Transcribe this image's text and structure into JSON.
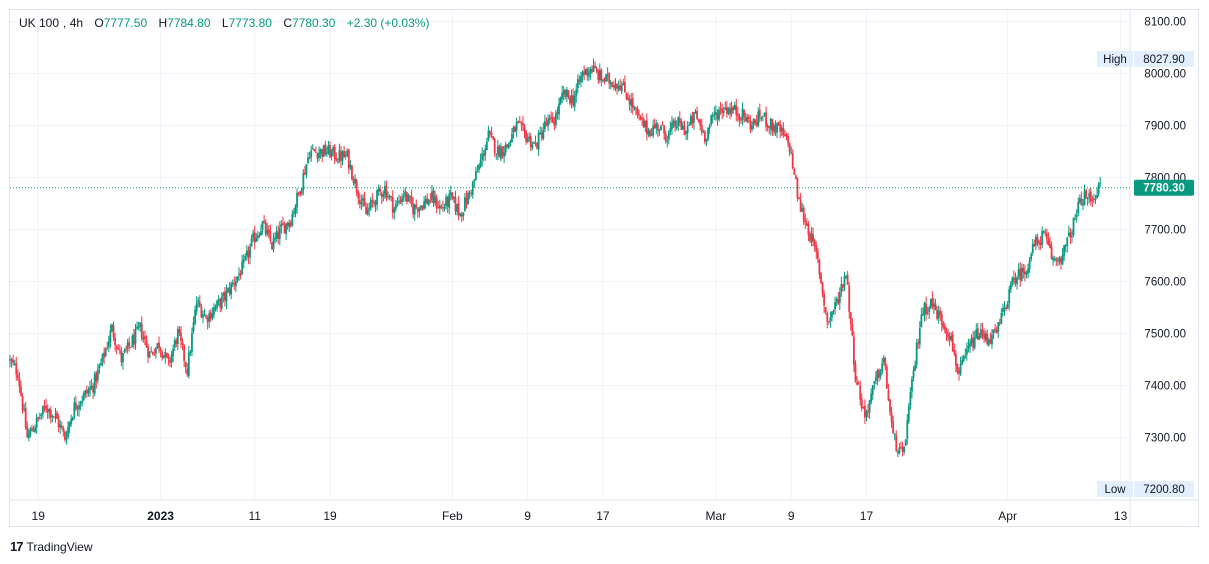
{
  "header": {
    "symbol": "UK 100",
    "interval": "4h",
    "o_label": "O",
    "o_value": "7777.50",
    "h_label": "H",
    "h_value": "7784.80",
    "l_label": "L",
    "l_value": "7773.80",
    "c_label": "C",
    "c_value": "7780.30",
    "change": "+2.30 (+0.03%)"
  },
  "colors": {
    "up": "#089981",
    "down": "#f23645",
    "grid": "#f0f3fa",
    "axis_text": "#131722",
    "badge_bg": "#e3effd"
  },
  "markers": {
    "high_label": "High",
    "high_value": "8027.90",
    "low_label": "Low",
    "low_value": "7200.80",
    "last_value": "7780.30"
  },
  "footer": {
    "brand": "TradingView",
    "logo": "17"
  },
  "chart_data": {
    "type": "candlestick",
    "title": "UK 100, 4h",
    "y_ticks": [
      "7300.00",
      "7400.00",
      "7500.00",
      "7600.00",
      "7700.00",
      "7800.00",
      "7900.00",
      "8000.00",
      "8100.00"
    ],
    "ylim": [
      7180,
      8122
    ],
    "x_ticks": [
      {
        "label": "19",
        "date": "2022-12-19"
      },
      {
        "label": "2023",
        "date": "2023-01-01"
      },
      {
        "label": "11",
        "date": "2023-01-11"
      },
      {
        "label": "19",
        "date": "2023-01-19"
      },
      {
        "label": "Feb",
        "date": "2023-02-01"
      },
      {
        "label": "9",
        "date": "2023-02-09"
      },
      {
        "label": "17",
        "date": "2023-02-17"
      },
      {
        "label": "Mar",
        "date": "2023-03-01"
      },
      {
        "label": "9",
        "date": "2023-03-09"
      },
      {
        "label": "17",
        "date": "2023-03-17"
      },
      {
        "label": "Apr",
        "date": "2023-04-01"
      },
      {
        "label": "13",
        "date": "2023-04-13"
      }
    ],
    "xlim": [
      "2022-12-16",
      "2023-04-14"
    ],
    "grid": true,
    "closes": [
      [
        "2022-12-16",
        7450
      ],
      [
        "2022-12-17",
        7425
      ],
      [
        "2022-12-18",
        7300
      ],
      [
        "2022-12-19",
        7330
      ],
      [
        "2022-12-20",
        7360
      ],
      [
        "2022-12-21",
        7340
      ],
      [
        "2022-12-22",
        7300
      ],
      [
        "2022-12-23",
        7360
      ],
      [
        "2022-12-24",
        7380
      ],
      [
        "2022-12-25",
        7400
      ],
      [
        "2022-12-26",
        7450
      ],
      [
        "2022-12-27",
        7510
      ],
      [
        "2022-12-28",
        7450
      ],
      [
        "2022-12-29",
        7480
      ],
      [
        "2022-12-30",
        7510
      ],
      [
        "2022-12-31",
        7460
      ],
      [
        "2023-01-01",
        7480
      ],
      [
        "2023-01-02",
        7440
      ],
      [
        "2023-01-03",
        7500
      ],
      [
        "2023-01-04",
        7430
      ],
      [
        "2023-01-05",
        7560
      ],
      [
        "2023-01-06",
        7530
      ],
      [
        "2023-01-07",
        7550
      ],
      [
        "2023-01-08",
        7570
      ],
      [
        "2023-01-09",
        7600
      ],
      [
        "2023-01-10",
        7630
      ],
      [
        "2023-01-11",
        7680
      ],
      [
        "2023-01-12",
        7710
      ],
      [
        "2023-01-13",
        7670
      ],
      [
        "2023-01-14",
        7700
      ],
      [
        "2023-01-15",
        7720
      ],
      [
        "2023-01-16",
        7780
      ],
      [
        "2023-01-17",
        7850
      ],
      [
        "2023-01-18",
        7850
      ],
      [
        "2023-01-19",
        7850
      ],
      [
        "2023-01-20",
        7840
      ],
      [
        "2023-01-21",
        7840
      ],
      [
        "2023-01-22",
        7780
      ],
      [
        "2023-01-23",
        7730
      ],
      [
        "2023-01-24",
        7760
      ],
      [
        "2023-01-25",
        7780
      ],
      [
        "2023-01-26",
        7740
      ],
      [
        "2023-01-27",
        7770
      ],
      [
        "2023-01-28",
        7740
      ],
      [
        "2023-01-29",
        7750
      ],
      [
        "2023-01-30",
        7760
      ],
      [
        "2023-01-31",
        7740
      ],
      [
        "2023-02-01",
        7760
      ],
      [
        "2023-02-02",
        7730
      ],
      [
        "2023-02-03",
        7770
      ],
      [
        "2023-02-04",
        7820
      ],
      [
        "2023-02-05",
        7880
      ],
      [
        "2023-02-06",
        7850
      ],
      [
        "2023-02-07",
        7860
      ],
      [
        "2023-02-08",
        7900
      ],
      [
        "2023-02-09",
        7880
      ],
      [
        "2023-02-10",
        7860
      ],
      [
        "2023-02-11",
        7900
      ],
      [
        "2023-02-12",
        7910
      ],
      [
        "2023-02-13",
        7960
      ],
      [
        "2023-02-14",
        7950
      ],
      [
        "2023-02-15",
        8000
      ],
      [
        "2023-02-16",
        8010
      ],
      [
        "2023-02-17",
        7990
      ],
      [
        "2023-02-18",
        7985
      ],
      [
        "2023-02-19",
        7980
      ],
      [
        "2023-02-20",
        7950
      ],
      [
        "2023-02-21",
        7910
      ],
      [
        "2023-02-22",
        7890
      ],
      [
        "2023-02-23",
        7900
      ],
      [
        "2023-02-24",
        7880
      ],
      [
        "2023-02-25",
        7905
      ],
      [
        "2023-02-26",
        7890
      ],
      [
        "2023-02-27",
        7920
      ],
      [
        "2023-02-28",
        7880
      ],
      [
        "2023-03-01",
        7920
      ],
      [
        "2023-03-02",
        7935
      ],
      [
        "2023-03-03",
        7930
      ],
      [
        "2023-03-04",
        7920
      ],
      [
        "2023-03-05",
        7900
      ],
      [
        "2023-03-06",
        7920
      ],
      [
        "2023-03-07",
        7900
      ],
      [
        "2023-03-08",
        7890
      ],
      [
        "2023-03-09",
        7860
      ],
      [
        "2023-03-10",
        7750
      ],
      [
        "2023-03-11",
        7700
      ],
      [
        "2023-03-12",
        7640
      ],
      [
        "2023-03-13",
        7520
      ],
      [
        "2023-03-14",
        7560
      ],
      [
        "2023-03-15",
        7620
      ],
      [
        "2023-03-16",
        7420
      ],
      [
        "2023-03-17",
        7340
      ],
      [
        "2023-03-18",
        7400
      ],
      [
        "2023-03-19",
        7450
      ],
      [
        "2023-03-20",
        7300
      ],
      [
        "2023-03-21",
        7260
      ],
      [
        "2023-03-22",
        7400
      ],
      [
        "2023-03-23",
        7540
      ],
      [
        "2023-03-24",
        7560
      ],
      [
        "2023-03-25",
        7530
      ],
      [
        "2023-03-26",
        7500
      ],
      [
        "2023-03-27",
        7420
      ],
      [
        "2023-03-28",
        7470
      ],
      [
        "2023-03-29",
        7500
      ],
      [
        "2023-03-30",
        7490
      ],
      [
        "2023-03-31",
        7500
      ],
      [
        "2023-04-01",
        7560
      ],
      [
        "2023-04-02",
        7610
      ],
      [
        "2023-04-03",
        7620
      ],
      [
        "2023-04-04",
        7670
      ],
      [
        "2023-04-05",
        7690
      ],
      [
        "2023-04-06",
        7640
      ],
      [
        "2023-04-07",
        7650
      ],
      [
        "2023-04-08",
        7700
      ],
      [
        "2023-04-09",
        7760
      ],
      [
        "2023-04-10",
        7760
      ],
      [
        "2023-04-11",
        7780
      ]
    ]
  }
}
